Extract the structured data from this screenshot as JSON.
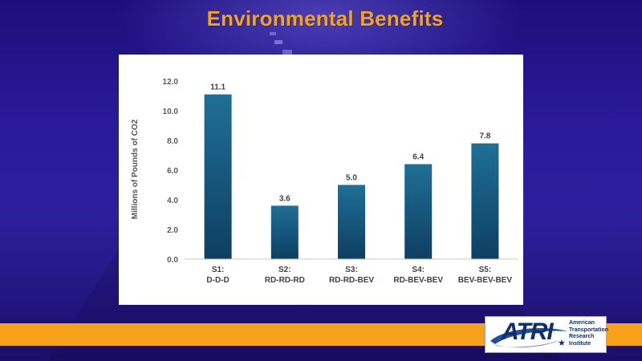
{
  "slide": {
    "title": "Environmental Benefits"
  },
  "colors": {
    "title": "#f5a21b",
    "bar_top": "#1f6f96",
    "bar_bottom": "#0d3f62",
    "band": "#f7a21a",
    "logo_navy": "#0f2e6e"
  },
  "chart_data": {
    "type": "bar",
    "title": "",
    "xlabel": "",
    "ylabel": "Millions of Pounds of CO2",
    "ylim": [
      0,
      12
    ],
    "yticks": [
      "0.0",
      "2.0",
      "4.0",
      "6.0",
      "8.0",
      "10.0",
      "12.0"
    ],
    "categories": [
      [
        "S1:",
        "D-D-D"
      ],
      [
        "S2:",
        "RD-RD-RD"
      ],
      [
        "S3:",
        "RD-RD-BEV"
      ],
      [
        "S4:",
        "RD-BEV-BEV"
      ],
      [
        "S5:",
        "BEV-BEV-BEV"
      ]
    ],
    "values": [
      11.1,
      3.6,
      5.0,
      6.4,
      7.8
    ],
    "value_labels": [
      "11.1",
      "3.6",
      "5.0",
      "6.4",
      "7.8"
    ],
    "grid": false
  },
  "logo": {
    "acronym": "ATRI",
    "lines": [
      "American",
      "Transportation",
      "Research",
      "Institute"
    ],
    "star_icon": "star-icon"
  }
}
